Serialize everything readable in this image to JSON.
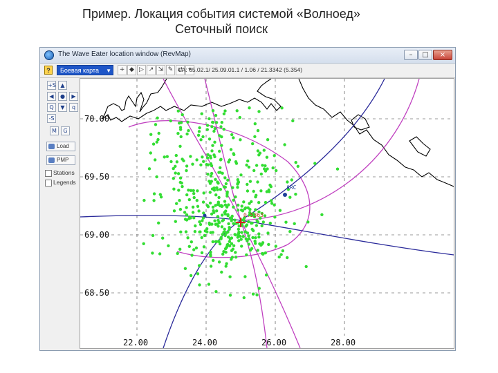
{
  "slide": {
    "title_line1": "Пример. Локация события системой «Волноед»",
    "title_line2": "Сеточный поиск"
  },
  "window": {
    "title": "The Wave Eater location window (RevMap)",
    "controls": {
      "minimize": "–",
      "maximize": "□",
      "close": "×"
    }
  },
  "toolbar": {
    "help": "?",
    "map_select": "Боевая карта",
    "tools": [
      "+",
      "◆",
      "▷",
      "↗",
      "⇲",
      "✎",
      "⇄",
      "⌖"
    ],
    "coords": "LA: 65.02.1/ 25.09.01.1 / 1.06 / 21.3342 (5.354)"
  },
  "sidebar": {
    "zoom_in": "+S",
    "zoom_out": "-S",
    "nav": [
      "◀",
      "▲",
      "▶",
      "▼",
      "●",
      "Q",
      "q"
    ],
    "buttons": [
      "M",
      "G"
    ],
    "load_label": "Load",
    "print_label": "PMP",
    "checkboxes": [
      "Stations",
      "Legends"
    ]
  },
  "map": {
    "lat_labels": [
      "70.00",
      "69.50",
      "69.00",
      "68.50"
    ],
    "lon_labels": [
      "22.00",
      "24.00",
      "26.00",
      "28.00"
    ],
    "event_label": "0.5363",
    "station_label": "ARC",
    "colors": {
      "points": "#33dd33",
      "hyperbola_magenta": "#c040c0",
      "hyperbola_blue": "#2a2a9a",
      "event": "#d42020",
      "coastline": "#000000",
      "grid": "#333333"
    }
  }
}
